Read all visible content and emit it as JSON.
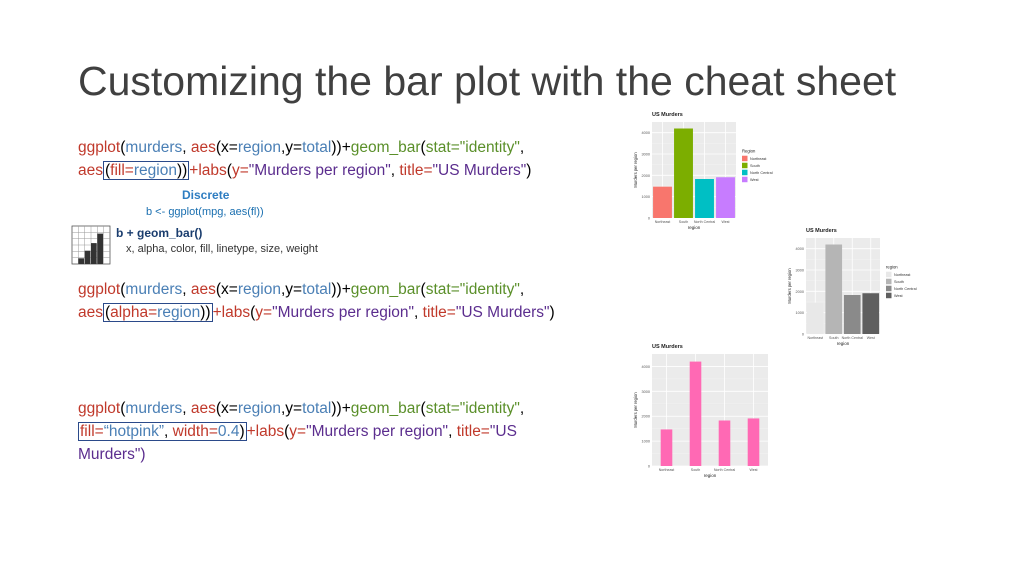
{
  "slide": {
    "title": "Customizing the bar plot with the cheat sheet"
  },
  "code1": {
    "line1": [
      "ggplot",
      "(",
      "murders",
      ", ",
      "aes",
      "(x=",
      "region",
      ",y=",
      "total",
      "))+",
      "geom_bar",
      "(",
      "stat=\"identity\"",
      ","
    ],
    "line2_pre": "aes",
    "line2_box": [
      "(",
      "fill=",
      "region",
      "))"
    ],
    "line2_post": [
      "+labs",
      "(",
      "y=",
      "\"Murders per region\"",
      ", ",
      "title=",
      "\"US Murders\"",
      ")"
    ]
  },
  "code2": {
    "line1": [
      "ggplot",
      "(",
      "murders",
      ", ",
      "aes",
      "(x=",
      "region",
      ",y=",
      "total",
      "))+",
      "geom_bar",
      "(",
      "stat=\"identity\"",
      ","
    ],
    "line2_pre": "aes",
    "line2_box": [
      "(",
      "alpha=",
      "region",
      "))"
    ],
    "line2_post": [
      "+labs",
      "(",
      "y=",
      "\"Murders per region\"",
      ", ",
      "title=",
      "\"US Murders\"",
      ")"
    ]
  },
  "code3": {
    "line1": [
      "ggplot",
      "(",
      "murders",
      ", ",
      "aes",
      "(x=",
      "region",
      ",y=",
      "total",
      "))+",
      "geom_bar",
      "(",
      "stat=\"identity\"",
      ","
    ],
    "line2_box": [
      "fill=",
      "“hotpink”",
      ", ",
      "width=",
      "0.4",
      ")"
    ],
    "line2_post": [
      "+labs",
      "(",
      "y=",
      "\"Murders per region\"",
      ", ",
      "title=",
      "\"US"
    ],
    "line3": "Murders\")"
  },
  "cheatsheet": {
    "heading": "Discrete",
    "line1": "b <- ggplot(mpg, aes(fl))",
    "geom": "b + geom_bar()",
    "aesthetics": "x, alpha, color, fill, linetype, size, weight",
    "bars": [
      0.15,
      0.35,
      0.55,
      0.8
    ]
  },
  "chart_data": [
    {
      "type": "bar",
      "title": "US Murders",
      "xlabel": "region",
      "ylabel": "Murders per region",
      "categories": [
        "Northeast",
        "South",
        "North Central",
        "West"
      ],
      "values": [
        1469,
        4195,
        1828,
        1911
      ],
      "ylim": [
        0,
        4500
      ],
      "yticks": [
        "0",
        "1000",
        "2000",
        "3000",
        "4000"
      ],
      "colors": [
        "#f8766d",
        "#7cae00",
        "#00bfc4",
        "#c77cff"
      ],
      "legend": {
        "title": "Region",
        "position": "right",
        "entries": [
          "Northeast",
          "South",
          "North Central",
          "West"
        ]
      },
      "bar_width": 0.9,
      "grid": true
    },
    {
      "type": "bar",
      "title": "US Murders",
      "xlabel": "region",
      "ylabel": "Murders per region",
      "categories": [
        "Northeast",
        "South",
        "North Central",
        "West"
      ],
      "values": [
        1469,
        4195,
        1828,
        1911
      ],
      "ylim": [
        0,
        4500
      ],
      "yticks": [
        "0",
        "1000",
        "2000",
        "3000",
        "4000"
      ],
      "colors": [
        "#e8e8e8",
        "#b5b5b5",
        "#8a8a8a",
        "#5f5f5f"
      ],
      "legend": {
        "title": "region",
        "position": "right",
        "entries": [
          "Northeast",
          "South",
          "North Central",
          "West"
        ]
      },
      "bar_width": 0.9,
      "grid": true
    },
    {
      "type": "bar",
      "title": "US Murders",
      "xlabel": "region",
      "ylabel": "Murders per region",
      "categories": [
        "Northeast",
        "South",
        "North Central",
        "West"
      ],
      "values": [
        1469,
        4195,
        1828,
        1911
      ],
      "ylim": [
        0,
        4500
      ],
      "yticks": [
        "0",
        "1000",
        "2000",
        "3000",
        "4000"
      ],
      "colors": [
        "#ff69b4",
        "#ff69b4",
        "#ff69b4",
        "#ff69b4"
      ],
      "legend": null,
      "bar_width": 0.4,
      "grid": true
    }
  ]
}
